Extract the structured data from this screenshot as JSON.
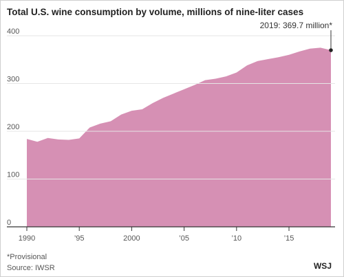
{
  "chart_data": {
    "type": "area",
    "title": "Total U.S. wine consumption by volume, millions of nine-liter cases",
    "x": [
      1990,
      1991,
      1992,
      1993,
      1994,
      1995,
      1996,
      1997,
      1998,
      1999,
      2000,
      2001,
      2002,
      2003,
      2004,
      2005,
      2006,
      2007,
      2008,
      2009,
      2010,
      2011,
      2012,
      2013,
      2014,
      2015,
      2016,
      2017,
      2018,
      2019
    ],
    "values": [
      184,
      178,
      186,
      183,
      182,
      185,
      208,
      216,
      221,
      235,
      243,
      246,
      259,
      270,
      279,
      288,
      297,
      307,
      310,
      315,
      323,
      338,
      347,
      351,
      355,
      360,
      367,
      373,
      375,
      369.7
    ],
    "color": "#d690b4",
    "xlim": [
      1990,
      2019
    ],
    "ylim": [
      0,
      400
    ],
    "xticks": [
      1990,
      {
        "value": 1995,
        "label": "’95"
      },
      2000,
      {
        "value": 2005,
        "label": "’05"
      },
      {
        "value": 2010,
        "label": "’10"
      },
      {
        "value": 2015,
        "label": "’15"
      }
    ],
    "yticks": [
      0,
      100,
      200,
      300,
      400
    ],
    "grid": true,
    "annotation": "2019: 369.7 million*",
    "footnote": "*Provisional",
    "source": "Source: IWSR",
    "logo": "WSJ"
  }
}
